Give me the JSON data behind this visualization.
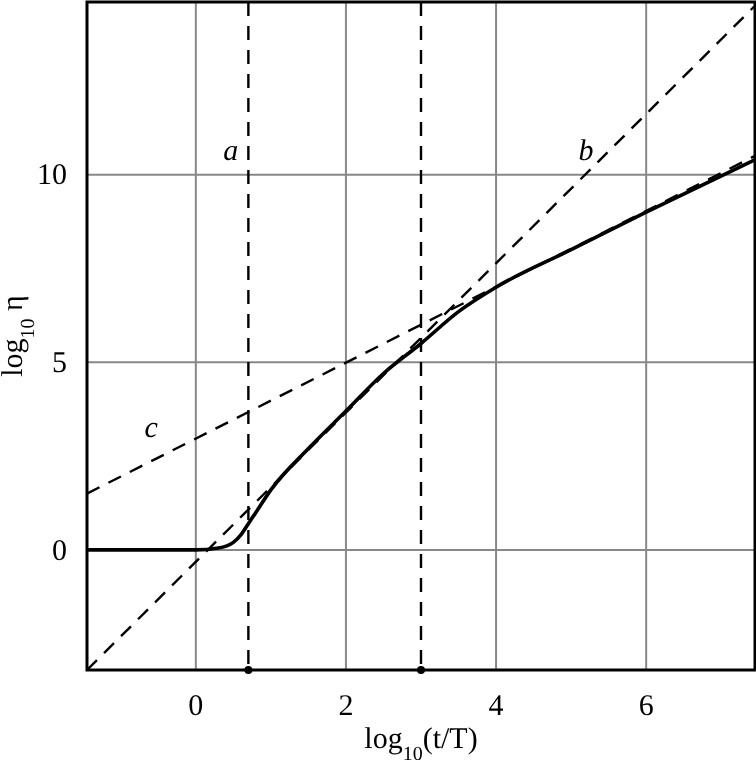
{
  "chart_data": {
    "type": "line",
    "xlabel": "log$_{10}$(t/T)",
    "ylabel": "log$_{10}$ η",
    "xlim": [
      -1.45,
      7.45
    ],
    "ylim": [
      -3.2,
      14.6
    ],
    "xticks": [
      0,
      2,
      4,
      6
    ],
    "yticks": [
      0,
      5,
      10
    ],
    "grid": true,
    "marker": "none",
    "series": [
      {
        "color": "#000000",
        "line_style": "solid",
        "x": [
          -1.45,
          0,
          0.3,
          0.5,
          0.6,
          0.7,
          0.8,
          1,
          1.5,
          2,
          2.5,
          3,
          3.5,
          4,
          5,
          6,
          7.45
        ],
        "values": [
          0,
          0,
          0.05,
          0.2,
          0.4,
          0.7,
          1.0,
          1.6,
          2.7,
          3.7,
          4.7,
          5.5,
          6.35,
          7.0,
          8.0,
          9.0,
          10.4
        ]
      },
      {
        "name": "b",
        "color": "#000000",
        "line_style": "dashed",
        "x": [
          -1.45,
          7.45
        ],
        "values": [
          -3.2,
          14.5
        ]
      },
      {
        "name": "c",
        "color": "#000000",
        "line_style": "dashed",
        "x": [
          -1.45,
          7.45
        ],
        "values": [
          1.5,
          10.5
        ]
      }
    ],
    "ref_lines": [
      {
        "axis": "x",
        "value": 0.7,
        "label": "a",
        "color": "#000000",
        "line_style": "dashed"
      },
      {
        "axis": "x",
        "value": 3,
        "color": "#000000",
        "line_style": "dashed"
      }
    ]
  }
}
